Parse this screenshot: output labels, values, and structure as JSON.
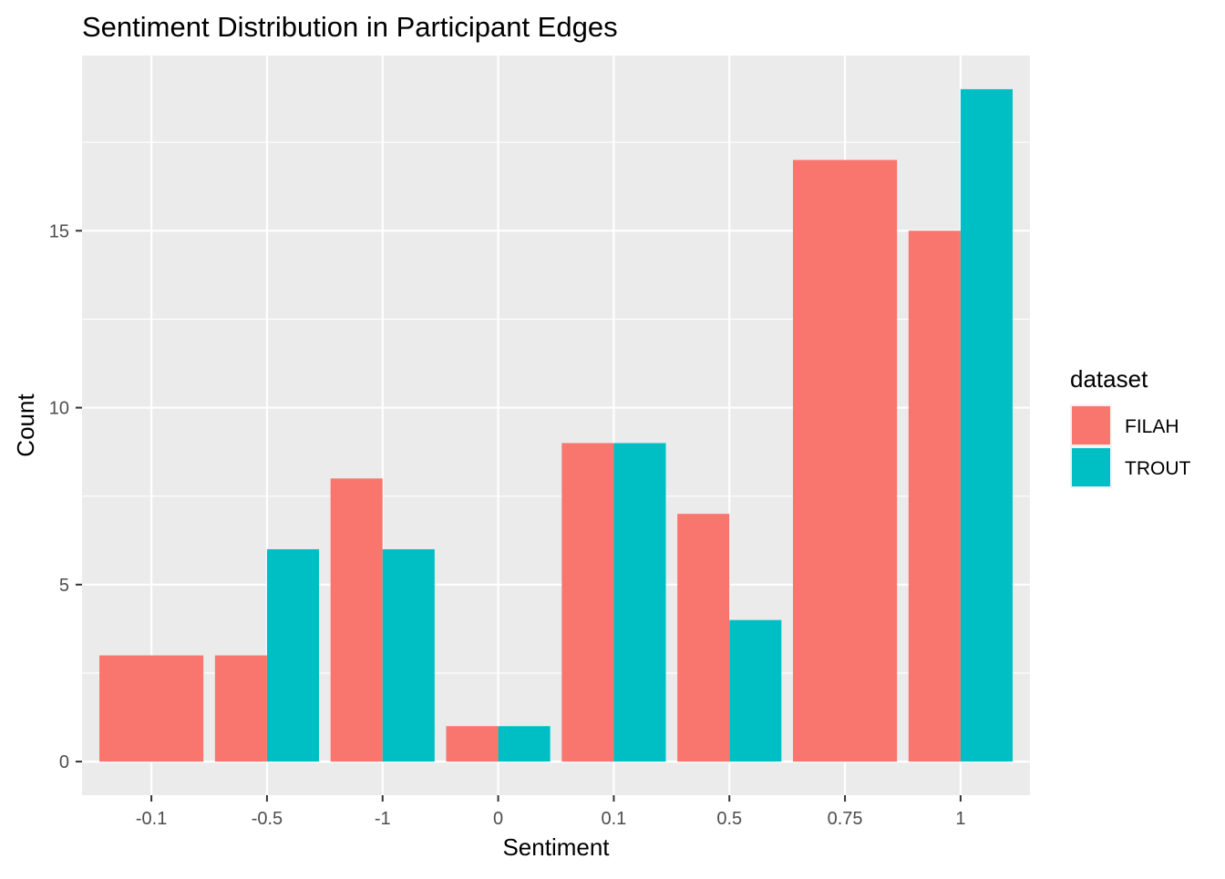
{
  "chart_data": {
    "type": "bar",
    "title": "Sentiment Distribution in Participant Edges",
    "xlabel": "Sentiment",
    "ylabel": "Count",
    "categories": [
      "-0.1",
      "-0.5",
      "-1",
      "0",
      "0.1",
      "0.5",
      "0.75",
      "1"
    ],
    "series": [
      {
        "name": "FILAH",
        "color": "#F8766D",
        "values": [
          3,
          3,
          8,
          1,
          9,
          7,
          17,
          15
        ]
      },
      {
        "name": "TROUT",
        "color": "#00BFC4",
        "values": [
          null,
          6,
          6,
          1,
          9,
          4,
          null,
          19
        ]
      }
    ],
    "ylim": [
      -0.95,
      19.95
    ],
    "yticks": [
      0,
      5,
      10,
      15
    ],
    "grid": true,
    "legend": {
      "title": "dataset",
      "position": "right"
    },
    "colors": {
      "panel_background": "#EBEBEB",
      "grid_line": "#FFFFFF"
    }
  }
}
